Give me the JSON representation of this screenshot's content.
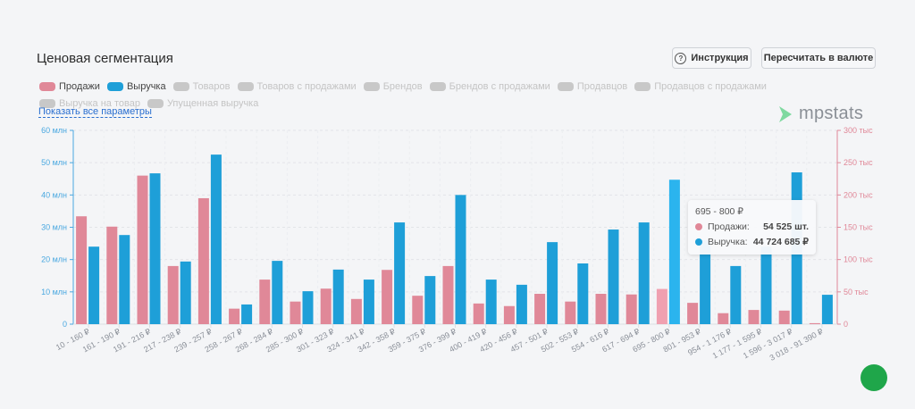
{
  "title": "Ценовая сегментация",
  "buttons": {
    "instruction": "Инструкция",
    "recalc": "Пересчитать в валюте"
  },
  "legend": [
    {
      "label": "Продажи",
      "active": true,
      "color": "#e08898"
    },
    {
      "label": "Выручка",
      "active": true,
      "color": "#1e9fd8"
    },
    {
      "label": "Товаров",
      "active": false
    },
    {
      "label": "Товаров с продажами",
      "active": false
    },
    {
      "label": "Брендов",
      "active": false
    },
    {
      "label": "Брендов с продажами",
      "active": false
    },
    {
      "label": "Продавцов",
      "active": false
    },
    {
      "label": "Продавцов с продажами",
      "active": false
    },
    {
      "label": "Выручка на товар",
      "active": false
    },
    {
      "label": "Упущенная выручка",
      "active": false
    }
  ],
  "show_all": "Показать все параметры",
  "logo": "mpstats",
  "tooltip": {
    "title": "695 - 800 ₽",
    "sales_label": "Продажи:",
    "sales_value": "54 525 шт.",
    "revenue_label": "Выручка:",
    "revenue_value": "44 724 685 ₽"
  },
  "chart_data": {
    "type": "bar",
    "categories": [
      "10 - 160 ₽",
      "161 - 190 ₽",
      "191 - 216 ₽",
      "217 - 238 ₽",
      "239 - 257 ₽",
      "258 - 267 ₽",
      "268 - 284 ₽",
      "285 - 300 ₽",
      "301 - 323 ₽",
      "324 - 341 ₽",
      "342 - 358 ₽",
      "359 - 375 ₽",
      "376 - 399 ₽",
      "400 - 419 ₽",
      "420 - 456 ₽",
      "457 - 501 ₽",
      "502 - 553 ₽",
      "554 - 616 ₽",
      "617 - 694 ₽",
      "695 - 800 ₽",
      "801 - 953 ₽",
      "954 - 1 176 ₽",
      "1 177 - 1 595 ₽",
      "1 596 - 3 017 ₽",
      "3 018 - 91 390 ₽"
    ],
    "series": [
      {
        "name": "Продажи",
        "axis": "right",
        "unit": "тыс",
        "color": "#e08898",
        "values": [
          167,
          151,
          230,
          90,
          195,
          24,
          69,
          35,
          55,
          39,
          84,
          44,
          90,
          32,
          28,
          47,
          35,
          47,
          46,
          54.525,
          33,
          17,
          22,
          21,
          1.5
        ]
      },
      {
        "name": "Выручка",
        "axis": "left",
        "unit": "млн",
        "color": "#1e9fd8",
        "values": [
          24,
          27.6,
          46.7,
          19.4,
          52.5,
          6.1,
          19.6,
          10.2,
          16.9,
          13.8,
          31.5,
          14.9,
          40,
          13.8,
          12.2,
          25.4,
          18.8,
          29.3,
          31.5,
          44.72,
          26,
          18,
          24,
          47,
          9.1
        ]
      }
    ],
    "y_left": {
      "ticks": [
        "0",
        "10 млн",
        "20 млн",
        "30 млн",
        "40 млн",
        "50 млн",
        "60 млн"
      ],
      "range": [
        0,
        60
      ],
      "color": "#4aa8e0"
    },
    "y_right": {
      "ticks": [
        "0",
        "50 тыс",
        "100 тыс",
        "150 тыс",
        "200 тыс",
        "250 тыс",
        "300 тыс"
      ],
      "range": [
        0,
        300
      ],
      "color": "#e08898"
    },
    "highlighted": "695 - 800 ₽",
    "grid": true
  }
}
